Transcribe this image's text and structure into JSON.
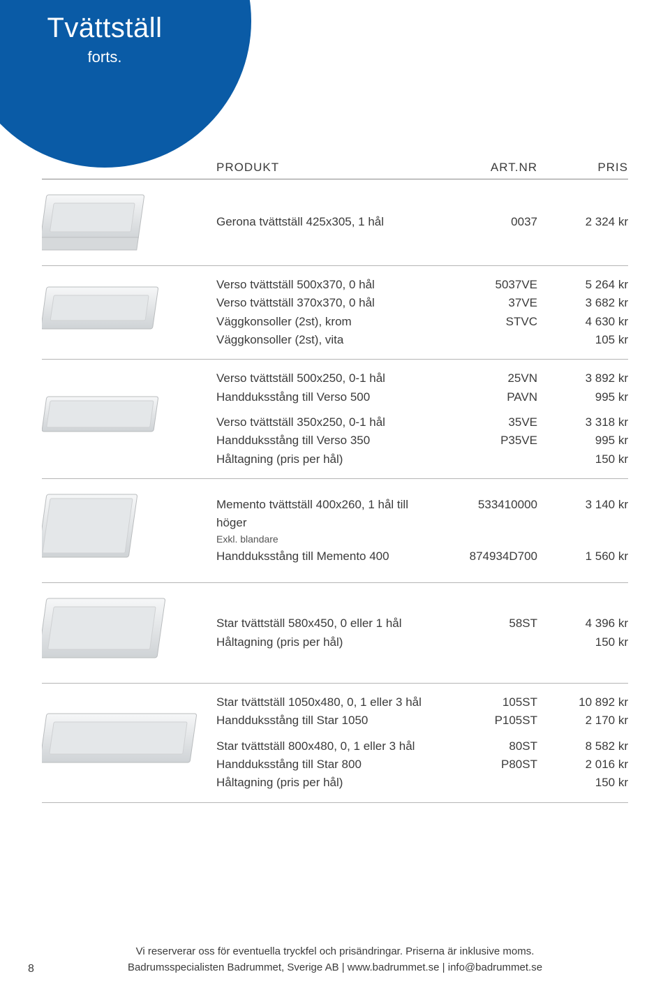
{
  "colors": {
    "circle_bg": "#0a5ba6",
    "text": "#3b3b3b",
    "rule": "#b5b5b5",
    "rule_strong": "#8a8a8a"
  },
  "circle": {
    "title": "Tvättställ",
    "subtitle": "forts."
  },
  "header": {
    "product": "PRODUKT",
    "artnr": "ART.NR",
    "price": "PRIS"
  },
  "sections": [
    {
      "rows": [
        {
          "p": "Gerona tvättställ 425x305, 1 hål",
          "a": "0037",
          "pr": "2 324 kr"
        }
      ]
    },
    {
      "rows": [
        {
          "p": "Verso tvättställ 500x370, 0 hål",
          "a": "5037VE",
          "pr": "5 264 kr"
        },
        {
          "p": "Verso tvättställ 370x370, 0 hål",
          "a": "37VE",
          "pr": "3 682 kr"
        },
        {
          "p": "Väggkonsoller (2st), krom",
          "a": "STVC",
          "pr": "4 630 kr"
        },
        {
          "p": "Väggkonsoller (2st), vita",
          "a": "",
          "pr": "105 kr"
        }
      ]
    },
    {
      "rows": [
        {
          "p": "Verso tvättställ 500x250, 0-1 hål",
          "a": "25VN",
          "pr": "3 892 kr"
        },
        {
          "p": "Handduksstång till Verso 500",
          "a": "PAVN",
          "pr": "995 kr"
        },
        {
          "gap": true
        },
        {
          "p": "Verso tvättställ 350x250, 0-1 hål",
          "a": "35VE",
          "pr": "3 318 kr"
        },
        {
          "p": "Handduksstång till Verso 350",
          "a": "P35VE",
          "pr": "995 kr"
        },
        {
          "p": "Håltagning (pris per hål)",
          "a": "",
          "pr": "150 kr"
        }
      ]
    },
    {
      "rows": [
        {
          "p": "Memento tvättställ 400x260, 1 hål till höger",
          "a": "533410000",
          "pr": "3 140 kr"
        },
        {
          "p": "Exkl. blandare",
          "a": "",
          "pr": "",
          "note": true
        },
        {
          "p": "Handduksstång till Memento 400",
          "a": "874934D700",
          "pr": "1 560 kr"
        }
      ]
    },
    {
      "rows": [
        {
          "p": "Star tvättställ 580x450, 0 eller 1 hål",
          "a": "58ST",
          "pr": "4 396 kr"
        },
        {
          "p": "Håltagning (pris per hål)",
          "a": "",
          "pr": "150 kr"
        }
      ]
    },
    {
      "rows": [
        {
          "p": "Star tvättställ 1050x480, 0, 1 eller 3 hål",
          "a": "105ST",
          "pr": "10 892 kr"
        },
        {
          "p": "Handduksstång till Star 1050",
          "a": "P105ST",
          "pr": "2 170 kr"
        },
        {
          "gap": true
        },
        {
          "p": "Star tvättställ 800x480, 0, 1 eller 3 hål",
          "a": "80ST",
          "pr": "8 582 kr"
        },
        {
          "p": "Handduksstång till Star 800",
          "a": "P80ST",
          "pr": "2 016 kr"
        },
        {
          "p": "Håltagning (pris per hål)",
          "a": "",
          "pr": "150 kr"
        }
      ]
    }
  ],
  "footer": {
    "line1": "Vi reserverar oss för eventuella tryckfel och prisändringar.  Priserna är inklusive moms.",
    "line2": "Badrumsspecialisten Badrummet, Sverige AB | www.badrummet.se | info@badrummet.se"
  },
  "page_number": "8"
}
